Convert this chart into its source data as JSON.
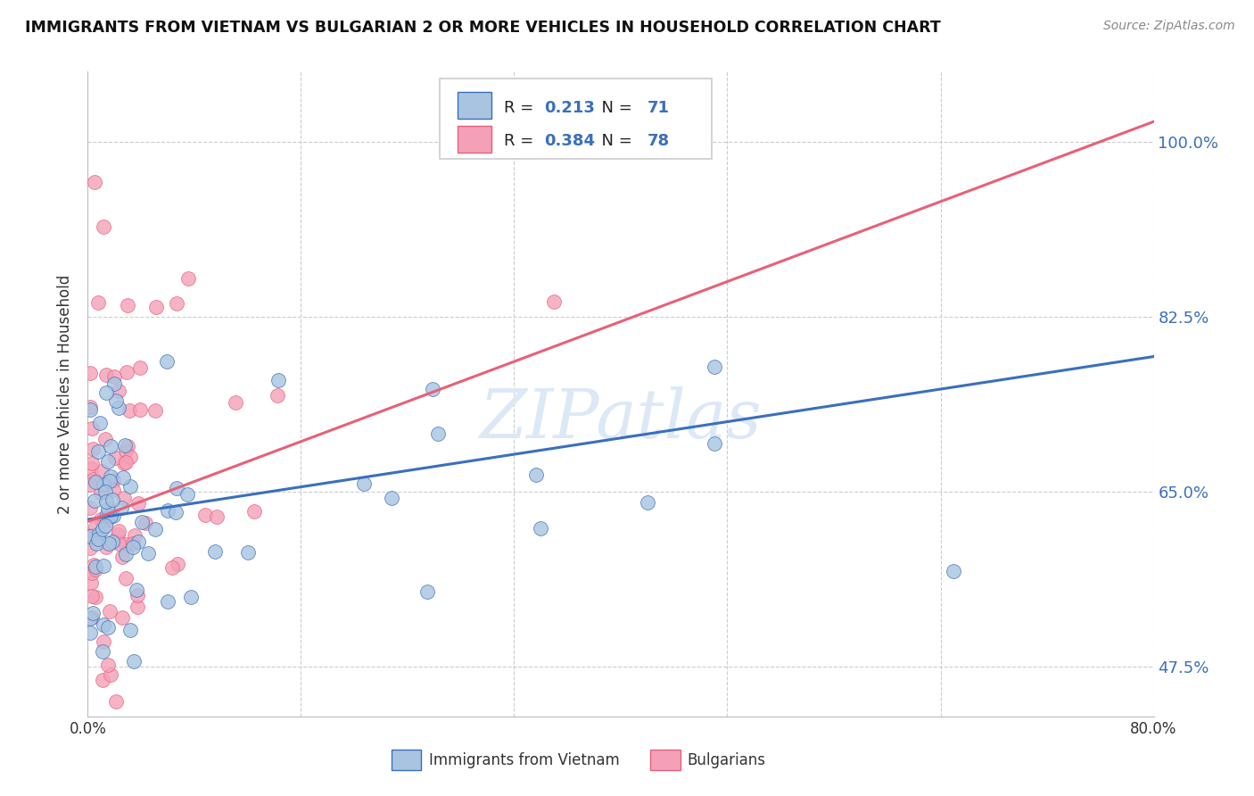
{
  "title": "IMMIGRANTS FROM VIETNAM VS BULGARIAN 2 OR MORE VEHICLES IN HOUSEHOLD CORRELATION CHART",
  "source": "Source: ZipAtlas.com",
  "ylabel": "2 or more Vehicles in Household",
  "x_min": 0.0,
  "x_max": 0.8,
  "y_min": 0.425,
  "y_max": 1.07,
  "y_ticks": [
    0.475,
    0.65,
    0.825,
    1.0
  ],
  "y_tick_labels": [
    "47.5%",
    "65.0%",
    "82.5%",
    "100.0%"
  ],
  "x_ticks": [
    0.0,
    0.16,
    0.32,
    0.48,
    0.64,
    0.8
  ],
  "x_tick_labels": [
    "0.0%",
    "",
    "",
    "",
    "",
    "80.0%"
  ],
  "legend_label1": "Immigrants from Vietnam",
  "legend_label2": "Bulgarians",
  "R1": 0.213,
  "N1": 71,
  "R2": 0.384,
  "N2": 78,
  "color1": "#a8c4e0",
  "color2": "#f4a0b8",
  "line_color1": "#3a6fbd",
  "line_color2": "#e8607a",
  "background_color": "#ffffff",
  "grid_color": "#cccccc",
  "watermark_color": "#dce8f5",
  "trend1_x0": 0.0,
  "trend1_y0": 0.622,
  "trend1_x1": 0.8,
  "trend1_y1": 0.785,
  "trend2_x0": 0.0,
  "trend2_y0": 0.62,
  "trend2_x1": 0.8,
  "trend2_y1": 1.02
}
